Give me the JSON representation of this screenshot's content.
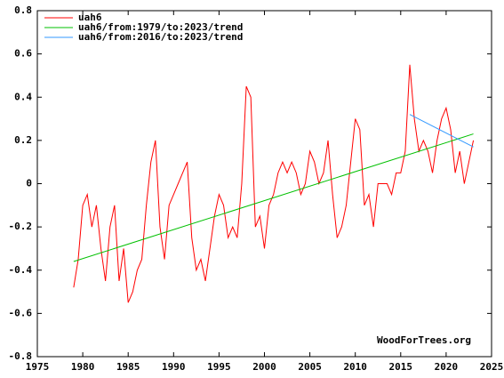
{
  "chart_data": {
    "type": "line",
    "watermark": "WoodForTrees.org",
    "xlim": [
      1975,
      2025
    ],
    "xticks": [
      1975,
      1980,
      1985,
      1990,
      1995,
      2000,
      2005,
      2010,
      2015,
      2020,
      2025
    ],
    "ylim": [
      -0.8,
      0.8
    ],
    "yticks": [
      -0.8,
      -0.6,
      -0.4,
      -0.2,
      0,
      0.2,
      0.4,
      0.6,
      0.8
    ],
    "grid": false,
    "legend": "top-left",
    "series": [
      {
        "name": "uah6",
        "color": "#ff0000",
        "x": [
          1979,
          1979.5,
          1980,
          1980.5,
          1981,
          1981.5,
          1982,
          1982.5,
          1983,
          1983.5,
          1984,
          1984.5,
          1985,
          1985.5,
          1986,
          1986.5,
          1987,
          1987.5,
          1988,
          1988.5,
          1989,
          1989.5,
          1990,
          1990.5,
          1991,
          1991.5,
          1992,
          1992.5,
          1993,
          1993.5,
          1994,
          1994.5,
          1995,
          1995.5,
          1996,
          1996.5,
          1997,
          1997.5,
          1998,
          1998.5,
          1999,
          1999.5,
          2000,
          2000.5,
          2001,
          2001.5,
          2002,
          2002.5,
          2003,
          2003.5,
          2004,
          2004.5,
          2005,
          2005.5,
          2006,
          2006.5,
          2007,
          2007.5,
          2008,
          2008.5,
          2009,
          2009.5,
          2010,
          2010.5,
          2011,
          2011.5,
          2012,
          2012.5,
          2013,
          2013.5,
          2014,
          2014.5,
          2015,
          2015.5,
          2016,
          2016.5,
          2017,
          2017.5,
          2018,
          2018.5,
          2019,
          2019.5,
          2020,
          2020.5,
          2021,
          2021.5,
          2022,
          2022.5,
          2023
        ],
        "values": [
          -0.48,
          -0.35,
          -0.1,
          -0.05,
          -0.2,
          -0.1,
          -0.3,
          -0.45,
          -0.2,
          -0.1,
          -0.45,
          -0.3,
          -0.55,
          -0.5,
          -0.4,
          -0.35,
          -0.1,
          0.1,
          0.2,
          -0.2,
          -0.35,
          -0.1,
          -0.05,
          0.0,
          0.05,
          0.1,
          -0.25,
          -0.4,
          -0.35,
          -0.45,
          -0.3,
          -0.15,
          -0.05,
          -0.1,
          -0.25,
          -0.2,
          -0.25,
          0.0,
          0.45,
          0.4,
          -0.2,
          -0.15,
          -0.3,
          -0.1,
          -0.05,
          0.05,
          0.1,
          0.05,
          0.1,
          0.05,
          -0.05,
          0.0,
          0.15,
          0.1,
          0.0,
          0.05,
          0.2,
          -0.05,
          -0.25,
          -0.2,
          -0.1,
          0.1,
          0.3,
          0.25,
          -0.1,
          -0.05,
          -0.2,
          0.0,
          0.0,
          0.0,
          -0.05,
          0.05,
          0.05,
          0.15,
          0.55,
          0.3,
          0.15,
          0.2,
          0.15,
          0.05,
          0.2,
          0.3,
          0.35,
          0.25,
          0.05,
          0.15,
          0.0,
          0.1,
          0.2
        ]
      },
      {
        "name": "uah6/from:1979/to:2023/trend",
        "color": "#00c000",
        "x": [
          1979,
          2023
        ],
        "values": [
          -0.36,
          0.23
        ]
      },
      {
        "name": "uah6/from:2016/to:2023/trend",
        "color": "#3399ff",
        "x": [
          2016,
          2023
        ],
        "values": [
          0.32,
          0.17
        ]
      }
    ]
  }
}
